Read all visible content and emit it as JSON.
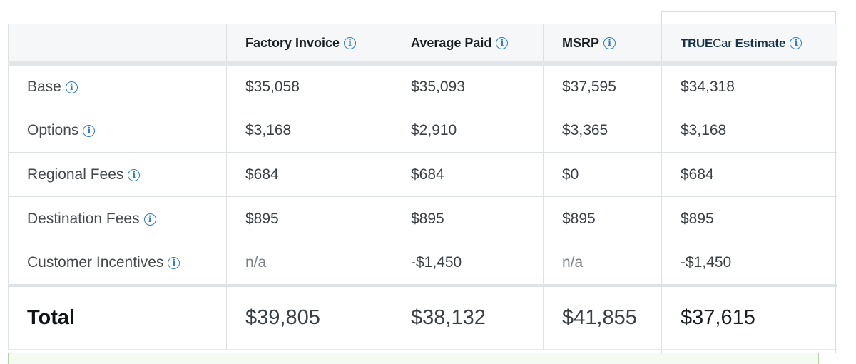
{
  "table": {
    "columns": [
      {
        "label": "Factory Invoice"
      },
      {
        "label": "Average Paid"
      },
      {
        "label": "MSRP"
      },
      {
        "label_brand_bold": "TRUE",
        "label_brand_light": "Car",
        "label_suffix": "Estimate"
      }
    ],
    "rows": [
      {
        "label": "Base",
        "values": [
          "$35,058",
          "$35,093",
          "$37,595",
          "$34,318"
        ]
      },
      {
        "label": "Options",
        "values": [
          "$3,168",
          "$2,910",
          "$3,365",
          "$3,168"
        ]
      },
      {
        "label": "Regional Fees",
        "values": [
          "$684",
          "$684",
          "$0",
          "$684"
        ]
      },
      {
        "label": "Destination Fees",
        "values": [
          "$895",
          "$895",
          "$895",
          "$895"
        ]
      },
      {
        "label": "Customer Incentives",
        "values": [
          "n/a",
          "-$1,450",
          "n/a",
          "-$1,450"
        ]
      }
    ],
    "total": {
      "label": "Total",
      "values": [
        "$39,805",
        "$38,132",
        "$41,855",
        "$37,615"
      ]
    }
  },
  "icons": {
    "info": "info-circle-icon",
    "info_glyph": "i"
  },
  "colors": {
    "accent": "#2f7dc4",
    "brand_navy": "#17314d",
    "header_bg": "#f5f7f8",
    "footer_green": "#f6fbf1"
  }
}
